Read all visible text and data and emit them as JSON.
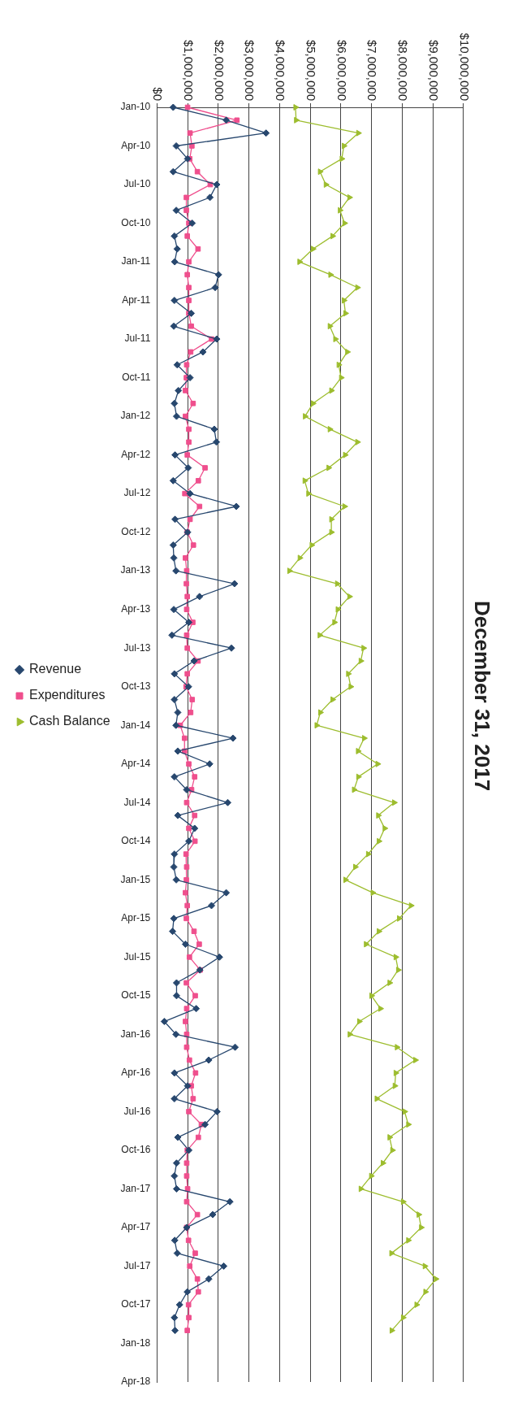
{
  "chart_data": {
    "type": "line",
    "title": "December 31, 2017",
    "categories": [
      "Jan-10",
      null,
      null,
      "Apr-10",
      null,
      null,
      "Jul-10",
      null,
      null,
      "Oct-10",
      null,
      null,
      "Jan-11",
      null,
      null,
      "Apr-11",
      null,
      null,
      "Jul-11",
      null,
      null,
      "Oct-11",
      null,
      null,
      "Jan-12",
      null,
      null,
      "Apr-12",
      null,
      null,
      "Jul-12",
      null,
      null,
      "Oct-12",
      null,
      null,
      "Jan-13",
      null,
      null,
      "Apr-13",
      null,
      null,
      "Jul-13",
      null,
      null,
      "Oct-13",
      null,
      null,
      "Jan-14",
      null,
      null,
      "Apr-14",
      null,
      null,
      "Jul-14",
      null,
      null,
      "Oct-14",
      null,
      null,
      "Jan-15",
      null,
      null,
      "Apr-15",
      null,
      null,
      "Jul-15",
      null,
      null,
      "Oct-15",
      null,
      null,
      "Jan-16",
      null,
      null,
      "Apr-16",
      null,
      null,
      "Jul-16",
      null,
      null,
      "Oct-16",
      null,
      null,
      "Jan-17",
      null,
      null,
      "Apr-17",
      null,
      null,
      "Jul-17",
      null,
      null,
      "Oct-17",
      null,
      null,
      "Jan-18",
      null,
      null,
      "Apr-18"
    ],
    "series": [
      {
        "name": "Revenue",
        "color": "#27476e",
        "marker": "diamond",
        "values": [
          530000,
          2260000,
          3560000,
          630000,
          1000000,
          530000,
          1950000,
          1730000,
          630000,
          1150000,
          570000,
          660000,
          580000,
          2010000,
          1900000,
          570000,
          1120000,
          550000,
          1950000,
          1500000,
          660000,
          1080000,
          700000,
          570000,
          640000,
          1870000,
          1940000,
          590000,
          1020000,
          530000,
          1080000,
          2590000,
          590000,
          1000000,
          530000,
          550000,
          620000,
          2530000,
          1390000,
          550000,
          1040000,
          490000,
          2430000,
          1210000,
          570000,
          1030000,
          570000,
          680000,
          620000,
          2480000,
          680000,
          1720000,
          570000,
          970000,
          2310000,
          680000,
          1230000,
          1040000,
          570000,
          550000,
          630000,
          2260000,
          1780000,
          550000,
          510000,
          930000,
          2040000,
          1400000,
          640000,
          640000,
          1280000,
          240000,
          620000,
          2550000,
          1690000,
          570000,
          1000000,
          570000,
          1960000,
          1570000,
          680000,
          1040000,
          640000,
          570000,
          640000,
          2380000,
          1820000,
          970000,
          580000,
          660000,
          2180000,
          1690000,
          990000,
          740000,
          570000,
          590000,
          null,
          null,
          null,
          null
        ]
      },
      {
        "name": "Expenditures",
        "color": "#ef4f8d",
        "marker": "square",
        "values": [
          1000000,
          2610000,
          1080000,
          1140000,
          1070000,
          1320000,
          1740000,
          960000,
          960000,
          1040000,
          990000,
          1340000,
          1040000,
          990000,
          1040000,
          1040000,
          1040000,
          1120000,
          1780000,
          1100000,
          970000,
          960000,
          930000,
          1180000,
          930000,
          1040000,
          1040000,
          990000,
          1570000,
          1350000,
          910000,
          1390000,
          1080000,
          990000,
          1190000,
          930000,
          970000,
          960000,
          990000,
          970000,
          1170000,
          970000,
          990000,
          1340000,
          990000,
          950000,
          1150000,
          1100000,
          760000,
          900000,
          900000,
          1040000,
          1230000,
          1130000,
          970000,
          1230000,
          1040000,
          1240000,
          950000,
          970000,
          960000,
          930000,
          990000,
          960000,
          1210000,
          1380000,
          1060000,
          1410000,
          960000,
          1250000,
          970000,
          930000,
          970000,
          970000,
          1060000,
          1260000,
          1120000,
          1180000,
          1040000,
          1450000,
          1350000,
          990000,
          970000,
          970000,
          1000000,
          970000,
          1320000,
          970000,
          1030000,
          1250000,
          1070000,
          1320000,
          1350000,
          1030000,
          1040000,
          990000,
          null,
          null,
          null,
          null
        ]
      },
      {
        "name": "Cash Balance",
        "color": "#9dbd2e",
        "marker": "triangle",
        "values": [
          4520000,
          4540000,
          6570000,
          6100000,
          6030000,
          5320000,
          5510000,
          6280000,
          5970000,
          6120000,
          5730000,
          5090000,
          4650000,
          5660000,
          6540000,
          6100000,
          6150000,
          5640000,
          5820000,
          6210000,
          5930000,
          6010000,
          5690000,
          5090000,
          4830000,
          5640000,
          6540000,
          6140000,
          5600000,
          4820000,
          4940000,
          6120000,
          5690000,
          5690000,
          5050000,
          4660000,
          4320000,
          5880000,
          6280000,
          5900000,
          5790000,
          5310000,
          6740000,
          6650000,
          6240000,
          6320000,
          5730000,
          5330000,
          5210000,
          6760000,
          6560000,
          7200000,
          6570000,
          6430000,
          7740000,
          7220000,
          7430000,
          7240000,
          6890000,
          6470000,
          6150000,
          7040000,
          8290000,
          7900000,
          7240000,
          6820000,
          7790000,
          7870000,
          7590000,
          7000000,
          7290000,
          6600000,
          6290000,
          7830000,
          8430000,
          7790000,
          7760000,
          7170000,
          8080000,
          8200000,
          7590000,
          7680000,
          7370000,
          6990000,
          6650000,
          8030000,
          8540000,
          8620000,
          8200000,
          7650000,
          8740000,
          9100000,
          8760000,
          8470000,
          8030000,
          7660000,
          null,
          null,
          null,
          null
        ]
      }
    ],
    "orientation": "horizontal",
    "xlim": [
      0,
      10000000
    ],
    "xticks": [
      {
        "value": 0,
        "label": "$0"
      },
      {
        "value": 1000000,
        "label": "$1,000,000"
      },
      {
        "value": 2000000,
        "label": "$2,000,000"
      },
      {
        "value": 3000000,
        "label": "$3,000,000"
      },
      {
        "value": 4000000,
        "label": "$4,000,000"
      },
      {
        "value": 5000000,
        "label": "$5,000,000"
      },
      {
        "value": 6000000,
        "label": "$6,000,000"
      },
      {
        "value": 7000000,
        "label": "$7,000,000"
      },
      {
        "value": 8000000,
        "label": "$8,000,000"
      },
      {
        "value": 9000000,
        "label": "$9,000,000"
      },
      {
        "value": 10000000,
        "label": "$10,000,000"
      }
    ],
    "grid": "x",
    "legend": "left"
  }
}
